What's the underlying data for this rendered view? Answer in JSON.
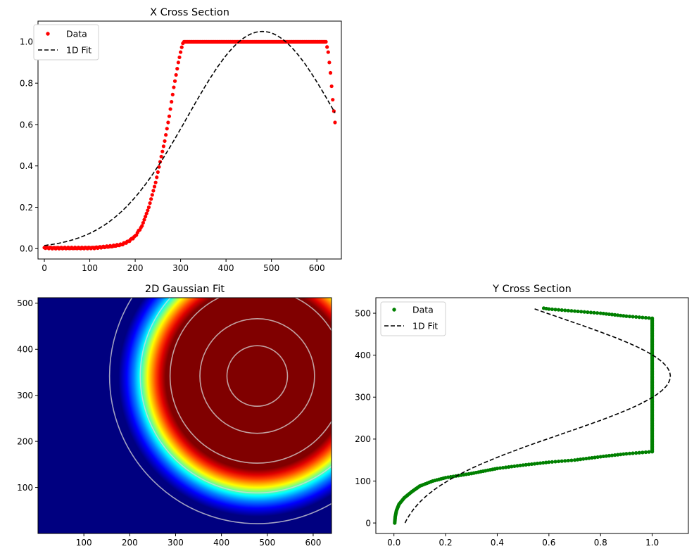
{
  "chart_data": [
    {
      "id": "x",
      "type": "scatter",
      "title": "X Cross Section",
      "xlabel": "",
      "ylabel": "",
      "xlim": [
        -14,
        654
      ],
      "ylim": [
        -0.05,
        1.1
      ],
      "xticks": [
        0,
        100,
        200,
        300,
        400,
        500,
        600
      ],
      "yticks": [
        0.0,
        0.2,
        0.4,
        0.6,
        0.8,
        1.0
      ],
      "legend": {
        "position": "top-left",
        "entries": [
          "Data",
          "1D Fit"
        ]
      },
      "series": [
        {
          "name": "Data",
          "marker": "dot",
          "color": "#ff0000",
          "points": [
            [
              0,
              0.005
            ],
            [
              20,
              0.003
            ],
            [
              50,
              0.003
            ],
            [
              80,
              0.003
            ],
            [
              110,
              0.004
            ],
            [
              130,
              0.008
            ],
            [
              150,
              0.012
            ],
            [
              170,
              0.02
            ],
            [
              185,
              0.035
            ],
            [
              200,
              0.06
            ],
            [
              215,
              0.11
            ],
            [
              230,
              0.2
            ],
            [
              245,
              0.32
            ],
            [
              255,
              0.42
            ],
            [
              265,
              0.52
            ],
            [
              275,
              0.64
            ],
            [
              285,
              0.78
            ],
            [
              295,
              0.9
            ],
            [
              302,
              0.97
            ],
            [
              306,
              1.0
            ],
            [
              350,
              1.0
            ],
            [
              400,
              1.0
            ],
            [
              450,
              1.0
            ],
            [
              500,
              1.0
            ],
            [
              550,
              1.0
            ],
            [
              600,
              1.0
            ],
            [
              620,
              1.0
            ],
            [
              625,
              0.95
            ],
            [
              630,
              0.85
            ],
            [
              635,
              0.72
            ],
            [
              640,
              0.61
            ]
          ]
        },
        {
          "name": "1D Fit",
          "line": "dashed",
          "color": "#000000",
          "gaussian": {
            "amplitude": 1.05,
            "center": 480,
            "sigma": 165
          },
          "x_range": [
            0,
            640
          ]
        }
      ]
    },
    {
      "id": "y",
      "type": "scatter",
      "title": "Y Cross Section",
      "xlabel": "",
      "ylabel": "",
      "xlim": [
        -0.07,
        1.14
      ],
      "ylim": [
        -25,
        537
      ],
      "xticks": [
        0.0,
        0.2,
        0.4,
        0.6,
        0.8,
        1.0
      ],
      "yticks": [
        0,
        100,
        200,
        300,
        400,
        500
      ],
      "legend": {
        "position": "top-left",
        "entries": [
          "Data",
          "1D Fit"
        ]
      },
      "series": [
        {
          "name": "Data",
          "marker": "dot",
          "color": "#008000",
          "points": [
            [
              0.003,
              0
            ],
            [
              0.005,
              15
            ],
            [
              0.01,
              30
            ],
            [
              0.02,
              45
            ],
            [
              0.04,
              60
            ],
            [
              0.07,
              75
            ],
            [
              0.1,
              88
            ],
            [
              0.15,
              100
            ],
            [
              0.2,
              108
            ],
            [
              0.3,
              118
            ],
            [
              0.4,
              130
            ],
            [
              0.5,
              138
            ],
            [
              0.6,
              145
            ],
            [
              0.7,
              150
            ],
            [
              0.8,
              158
            ],
            [
              0.9,
              165
            ],
            [
              1.0,
              170
            ],
            [
              1.0,
              250
            ],
            [
              1.0,
              350
            ],
            [
              1.0,
              450
            ],
            [
              1.0,
              488
            ],
            [
              0.9,
              493
            ],
            [
              0.8,
              500
            ],
            [
              0.7,
              505
            ],
            [
              0.6,
              510
            ],
            [
              0.58,
              512
            ]
          ]
        },
        {
          "name": "1D Fit",
          "line": "dashed",
          "color": "#000000",
          "gaussian": {
            "amplitude": 1.07,
            "center": 350,
            "sigma": 138
          },
          "y_range": [
            0,
            512
          ]
        }
      ]
    },
    {
      "id": "img",
      "type": "heatmap",
      "title": "2D Gaussian Fit",
      "xlabel": "",
      "ylabel": "",
      "xlim": [
        0,
        640
      ],
      "ylim": [
        0,
        512
      ],
      "xticks": [
        100,
        200,
        300,
        400,
        500,
        600
      ],
      "yticks": [
        100,
        200,
        300,
        400,
        500
      ],
      "colormap": "jet",
      "image": {
        "center": [
          478,
          338
        ],
        "radius": 175,
        "transition_width": 58
      },
      "contours": {
        "center": [
          478,
          342
        ],
        "radii": [
          66,
          125,
          190,
          255,
          322
        ],
        "color": "#d8d8d8"
      }
    }
  ]
}
